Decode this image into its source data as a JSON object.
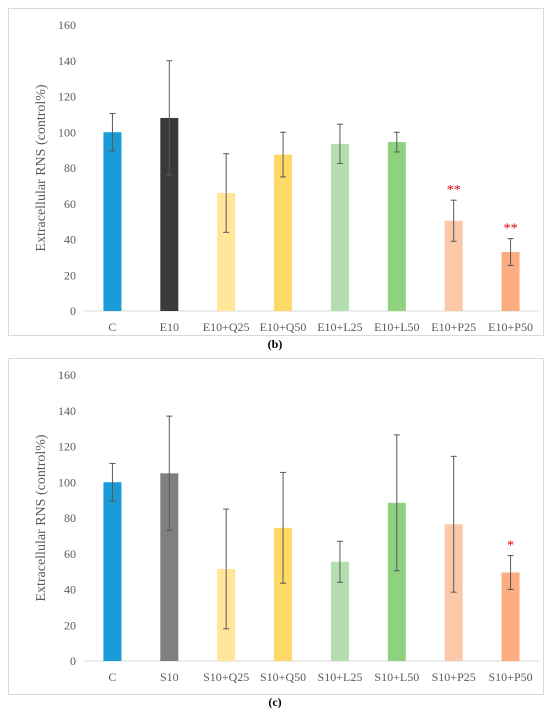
{
  "chart_data": [
    {
      "type": "bar",
      "panel_label": "(b)",
      "ylabel": "Extracellular RNS (control%)",
      "xlabel": "",
      "ylim": [
        0,
        160
      ],
      "yticks": [
        0,
        20,
        40,
        60,
        80,
        100,
        120,
        140,
        160
      ],
      "categories": [
        "C",
        "E10",
        "E10+Q25",
        "E10+Q50",
        "E10+L25",
        "E10+L50",
        "E10+P25",
        "E10+P50"
      ],
      "values": [
        100,
        108,
        66,
        87.5,
        93.5,
        94.5,
        50.5,
        33
      ],
      "errors": [
        10.5,
        32,
        22,
        12.5,
        11,
        5.5,
        11.5,
        7.5
      ],
      "significance": [
        "",
        "",
        "",
        "",
        "",
        "",
        "**",
        "**"
      ],
      "colors": [
        "#1a9ad6",
        "#3a3a3a",
        "#ffe699",
        "#ffd966",
        "#b5deb0",
        "#8fd17e",
        "#fcc9a8",
        "#fbad80"
      ],
      "significance_color": "#e00000",
      "grid": false,
      "legend": "none"
    },
    {
      "type": "bar",
      "panel_label": "(c)",
      "ylabel": "Extracellular RNS (control%)",
      "xlabel": "",
      "ylim": [
        0,
        160
      ],
      "yticks": [
        0,
        20,
        40,
        60,
        80,
        100,
        120,
        140,
        160
      ],
      "categories": [
        "C",
        "S10",
        "S10+Q25",
        "S10+Q50",
        "S10+L25",
        "S10+L50",
        "S10+P25",
        "S10+P50"
      ],
      "values": [
        100,
        105,
        51.5,
        74.5,
        55.5,
        88.5,
        76.5,
        49.5
      ],
      "errors": [
        10.5,
        32,
        33.5,
        31,
        11.5,
        38,
        38,
        9.5
      ],
      "significance": [
        "",
        "",
        "",
        "",
        "",
        "",
        "",
        "*"
      ],
      "colors": [
        "#1a9ad6",
        "#7f7f7f",
        "#ffe699",
        "#ffd966",
        "#b5deb0",
        "#8fd17e",
        "#fcc9a8",
        "#fbad80"
      ],
      "significance_color": "#e00000",
      "grid": false,
      "legend": "none"
    }
  ]
}
